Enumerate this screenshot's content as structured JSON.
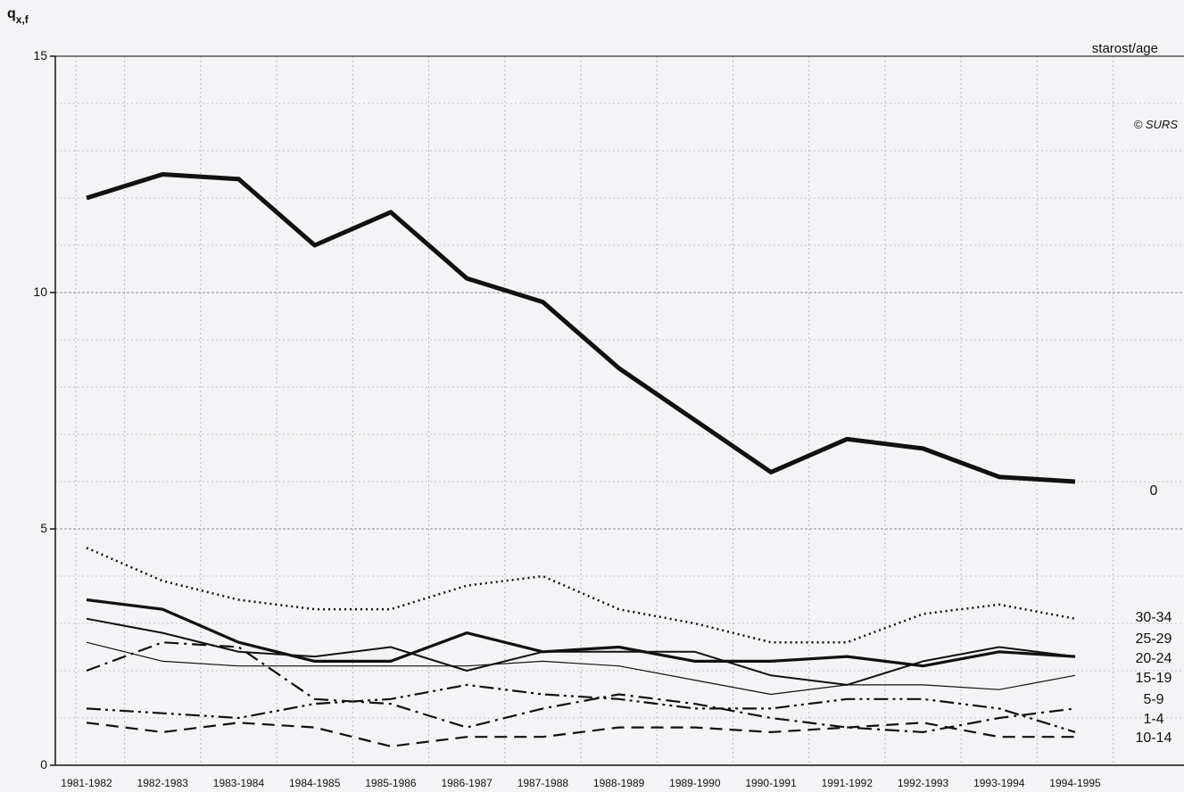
{
  "chart_data": {
    "type": "line",
    "ylabel_main": "q",
    "ylabel_sub": "x,f",
    "legend_title": "starost/age",
    "credit": "© SURS",
    "ylim": [
      0,
      15
    ],
    "yticks": [
      0,
      5,
      10,
      15
    ],
    "grid": true,
    "categories": [
      "1981-1982",
      "1982-1983",
      "1983-1984",
      "1984-1985",
      "1985-1986",
      "1986-1987",
      "1987-1988",
      "1988-1989",
      "1989-1990",
      "1990-1991",
      "1991-1992",
      "1992-1993",
      "1993-1994",
      "1994-1995"
    ],
    "series": [
      {
        "name": "0",
        "style": "thick",
        "values": [
          12.0,
          12.5,
          12.4,
          11.0,
          11.7,
          10.3,
          9.8,
          8.4,
          7.3,
          6.2,
          6.9,
          6.7,
          6.1,
          6.0
        ]
      },
      {
        "name": "30-34",
        "style": "dotted",
        "values": [
          4.6,
          3.9,
          3.5,
          3.3,
          3.3,
          3.8,
          4.0,
          3.3,
          3.0,
          2.6,
          2.6,
          3.2,
          3.4,
          3.1
        ]
      },
      {
        "name": "25-29",
        "style": "medium",
        "values": [
          3.5,
          3.3,
          2.6,
          2.2,
          2.2,
          2.8,
          2.4,
          2.5,
          2.2,
          2.2,
          2.3,
          2.1,
          2.4,
          2.3
        ]
      },
      {
        "name": "20-24",
        "style": "solid",
        "values": [
          3.1,
          2.8,
          2.4,
          2.3,
          2.5,
          2.0,
          2.4,
          2.4,
          2.4,
          1.9,
          1.7,
          2.2,
          2.5,
          2.3
        ]
      },
      {
        "name": "15-19",
        "style": "thin",
        "values": [
          2.6,
          2.2,
          2.1,
          2.1,
          2.1,
          2.1,
          2.2,
          2.1,
          1.8,
          1.5,
          1.7,
          1.7,
          1.6,
          1.9
        ]
      },
      {
        "name": "5-9",
        "style": "dashdotdot",
        "values": [
          1.2,
          1.1,
          1.0,
          1.3,
          1.4,
          1.7,
          1.5,
          1.4,
          1.2,
          1.2,
          1.4,
          1.4,
          1.2,
          0.7
        ]
      },
      {
        "name": "1-4",
        "style": "dashdot",
        "values": [
          2.0,
          2.6,
          2.5,
          1.4,
          1.3,
          0.8,
          1.2,
          1.5,
          1.3,
          1.0,
          0.8,
          0.7,
          1.0,
          1.2
        ]
      },
      {
        "name": "10-14",
        "style": "dashed",
        "values": [
          0.9,
          0.7,
          0.9,
          0.8,
          0.4,
          0.6,
          0.6,
          0.8,
          0.8,
          0.7,
          0.8,
          0.9,
          0.6,
          0.6
        ]
      }
    ],
    "label_order": [
      "0",
      "30-34",
      "25-29",
      "20-24",
      "15-19",
      "5-9",
      "1-4",
      "10-14"
    ]
  }
}
